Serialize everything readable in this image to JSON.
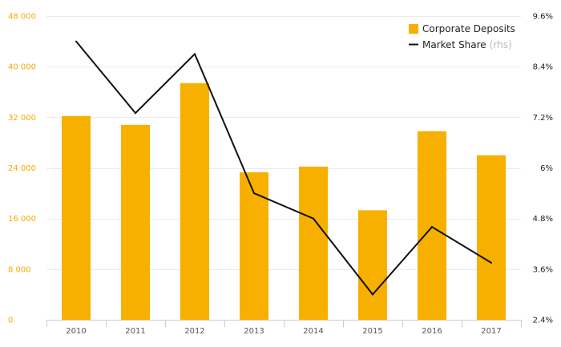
{
  "chart_data": {
    "type": "bar",
    "categories": [
      "2010",
      "2011",
      "2012",
      "2013",
      "2014",
      "2015",
      "2016",
      "2017"
    ],
    "series": [
      {
        "name": "Corporate Deposits",
        "type": "bar",
        "axis": "left",
        "color": "#f8b000",
        "values": [
          32200,
          30800,
          37400,
          23300,
          24200,
          17300,
          29800,
          26000
        ]
      },
      {
        "name": "Market Share",
        "legend_note": "(rhs)",
        "type": "line",
        "axis": "right",
        "color": "#111111",
        "values": [
          9.0,
          7.3,
          8.7,
          5.4,
          4.8,
          3.0,
          4.6,
          3.75
        ]
      }
    ],
    "y_left": {
      "ylim": [
        0,
        48000
      ],
      "ticks": [
        0,
        8000,
        16000,
        24000,
        32000,
        40000,
        48000
      ],
      "tick_labels": [
        "0",
        "8 000",
        "16 000",
        "24 000",
        "32 000",
        "40 000",
        "48 000"
      ],
      "color": "#f5a800"
    },
    "y_right": {
      "ylim": [
        2.4,
        9.6
      ],
      "ticks": [
        2.4,
        3.6,
        4.8,
        6.0,
        7.2,
        8.4,
        9.6
      ],
      "tick_labels": [
        "2.4%",
        "3.6%",
        "4.8%",
        "6%",
        "7.2%",
        "8.4%",
        "9.6%"
      ],
      "color": "#222222"
    },
    "grid": true,
    "legend_position": "top-right",
    "title": "",
    "xlabel": "",
    "ylabel": ""
  }
}
